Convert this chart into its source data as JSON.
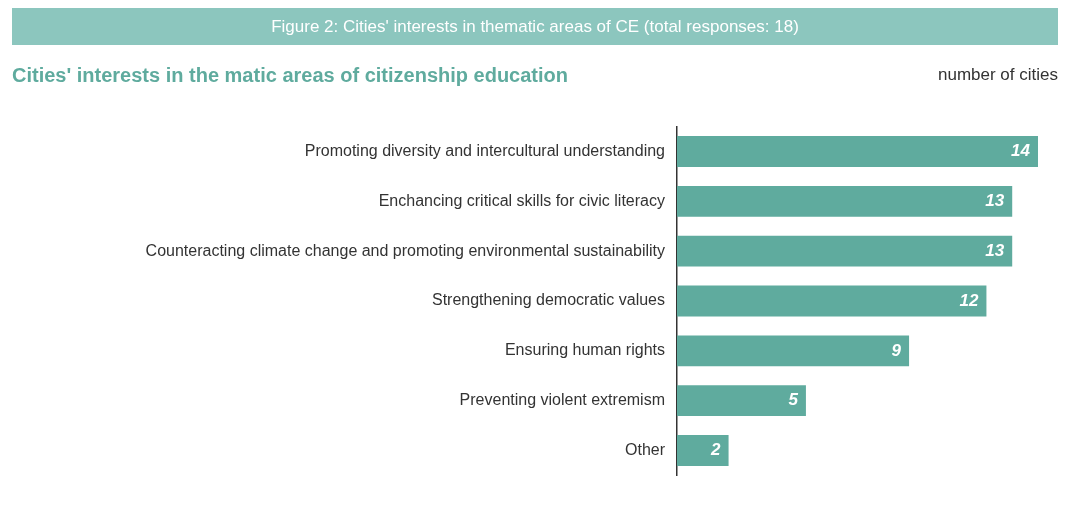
{
  "chart_data": {
    "type": "bar",
    "orientation": "horizontal",
    "title": "Figure 2: Cities' interests in thematic areas of CE (total responses: 18)",
    "subtitle": "Cities' interests in the matic areas of citizenship education",
    "xlabel": "number of cities",
    "categories": [
      "Promoting diversity and intercultural understanding",
      "Enchancing critical skills for civic literacy",
      "Counteracting climate change and promoting environmental sustainability",
      "Strengthening democratic values",
      "Ensuring human rights",
      "Preventing violent extremism",
      "Other"
    ],
    "values": [
      14,
      13,
      13,
      12,
      9,
      5,
      2
    ],
    "color": "#5fab9e",
    "data_labels": true,
    "legend": false
  }
}
